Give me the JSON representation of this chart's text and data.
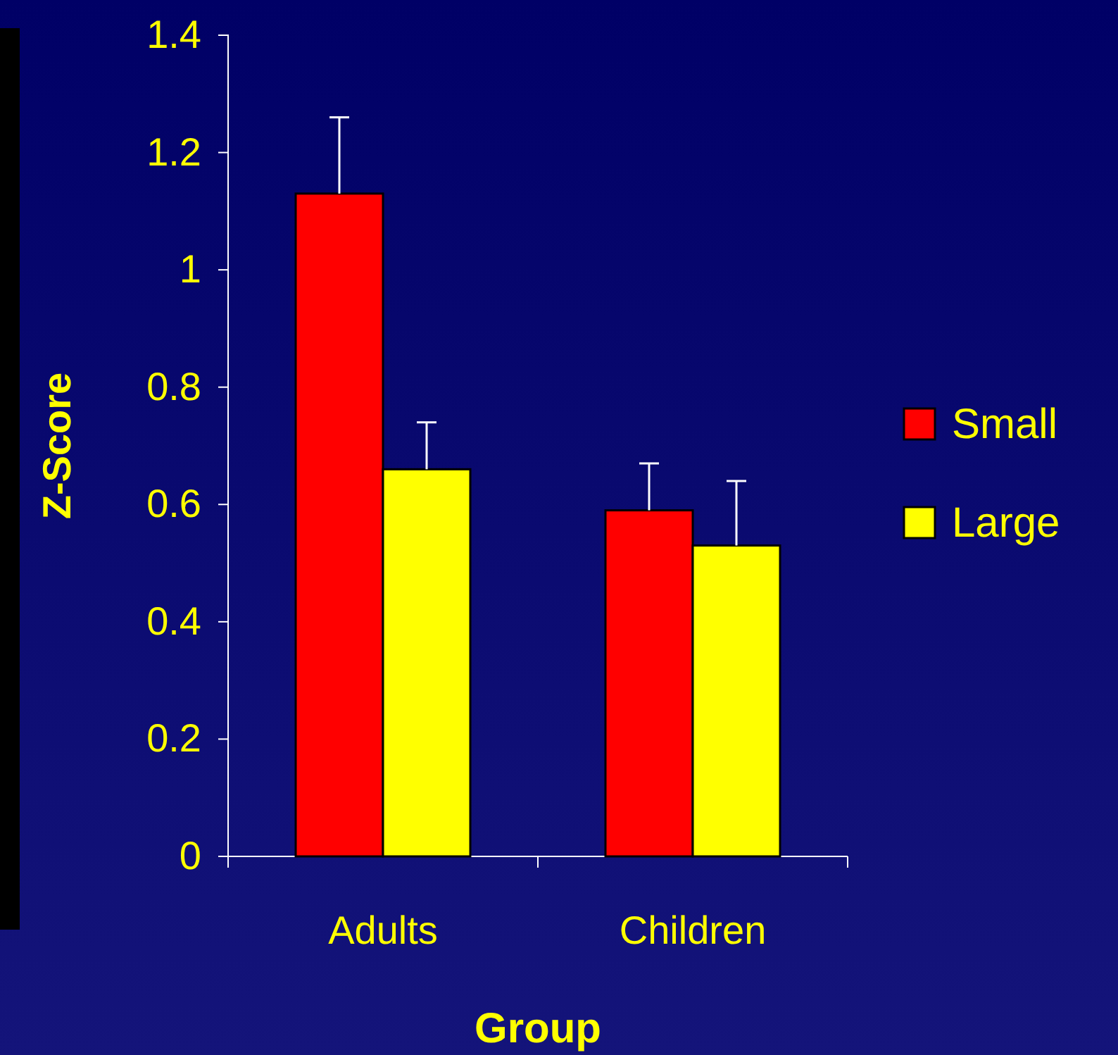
{
  "chart_data": {
    "type": "bar",
    "xlabel": "Group",
    "ylabel": "Z-Score",
    "categories": [
      "Adults",
      "Children"
    ],
    "series": [
      {
        "name": "Small",
        "color": "#ff0000",
        "values": [
          1.13,
          0.59
        ],
        "errors": [
          [
            1.13,
            1.26
          ],
          [
            0.59,
            0.67
          ]
        ]
      },
      {
        "name": "Large",
        "color": "#ffff00",
        "values": [
          0.66,
          0.53
        ],
        "errors": [
          [
            0.66,
            0.74
          ],
          [
            0.53,
            0.64
          ]
        ]
      }
    ],
    "ylim": [
      0,
      1.4
    ],
    "yticks": [
      0,
      0.2,
      0.4,
      0.6,
      0.8,
      1,
      1.2,
      1.4
    ],
    "grid": false,
    "legend": "right"
  }
}
